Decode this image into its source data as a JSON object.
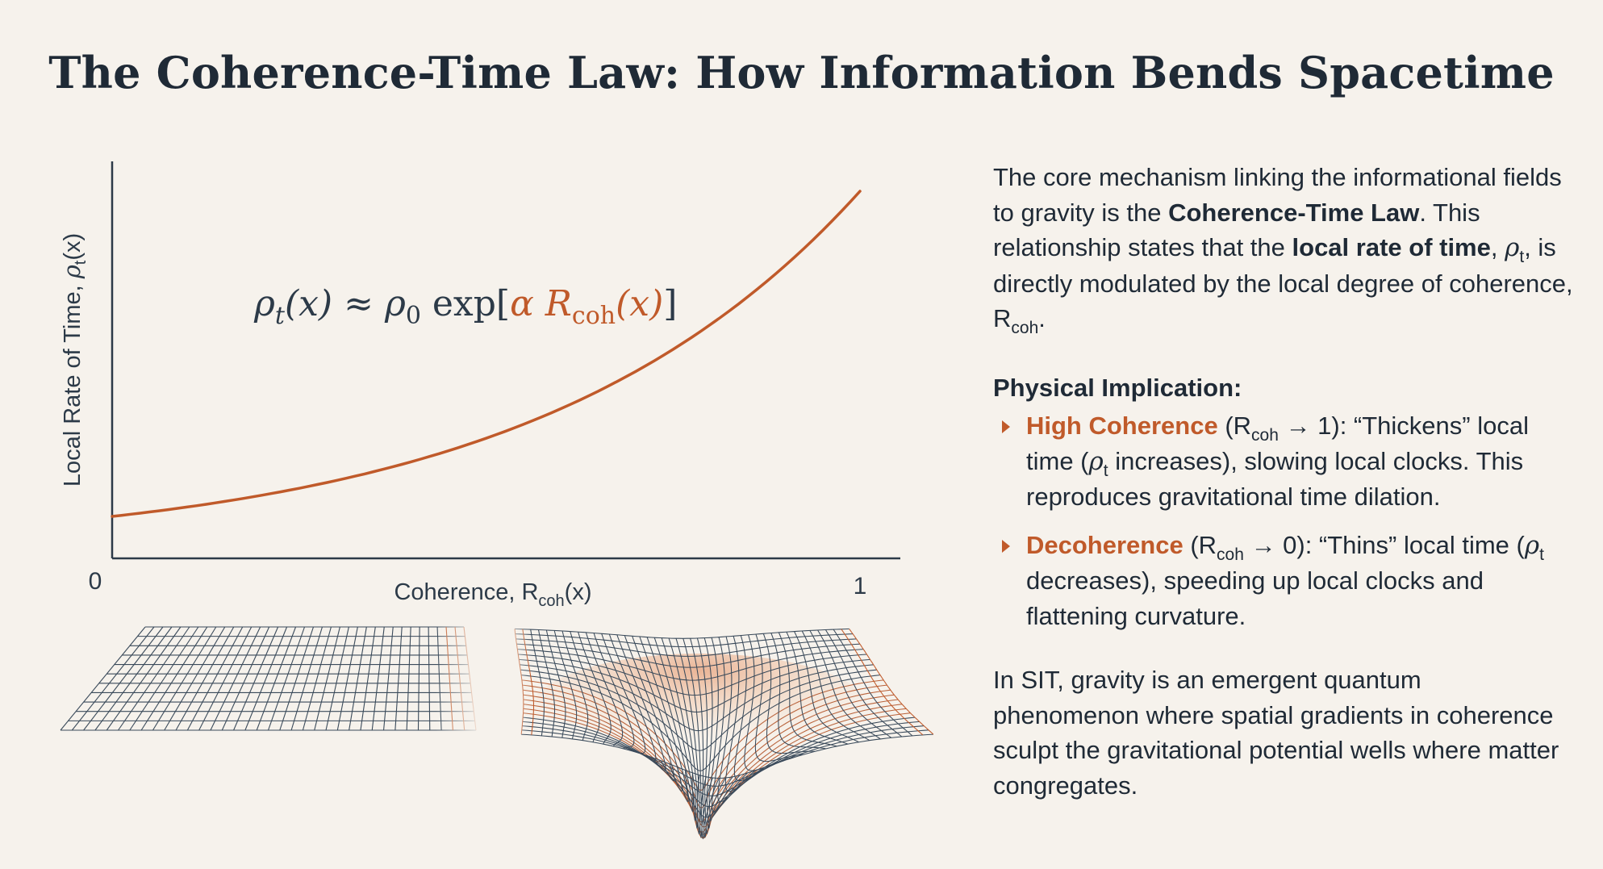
{
  "title": "The Coherence-Time Law: How Information Bends Spacetime",
  "colors": {
    "background": "#f6f2ec",
    "text": "#1f2a36",
    "accent": "#c05a2a",
    "grid": "#3a4a5a",
    "axis": "#2c3a48"
  },
  "chart_data": {
    "type": "line",
    "title": "",
    "xlabel": "Coherence, R",
    "xlabel_sub": "coh",
    "xlabel_tail": "(x)",
    "ylabel": "Local Rate of Time, ",
    "ylabel_symbol": "ρ",
    "ylabel_sub": "t",
    "ylabel_tail": "(x)",
    "xlim": [
      0,
      1
    ],
    "x_tick_labels": [
      "0",
      "1"
    ],
    "equation": {
      "lhs_symbol": "ρ",
      "lhs_sub": "t",
      "lhs_arg": "(x) ≈ ",
      "rhs_symbol": "ρ",
      "rhs_sub": "0",
      "func": " exp[",
      "alpha": "α ",
      "R": "R",
      "R_sub": "coh",
      "R_arg": "(x)",
      "close": "]"
    },
    "series": [
      {
        "name": "ρt(x)",
        "x": [
          0,
          0.1,
          0.2,
          0.3,
          0.4,
          0.5,
          0.6,
          0.7,
          0.8,
          0.9,
          1.0
        ],
        "values": [
          0.1,
          0.117,
          0.138,
          0.167,
          0.206,
          0.258,
          0.33,
          0.43,
          0.57,
          0.76,
          1.0
        ]
      }
    ]
  },
  "illustration": {
    "left_panel": "flat-spacetime-grid",
    "right_panel": "curved-spacetime-well"
  },
  "description": {
    "p1": {
      "t1": "The core mechanism linking the informational fields to gravity is the ",
      "b1": "Coherence-Time Law",
      "t2": ". This relationship states that the ",
      "b2": "local rate of time",
      "t3": ", ",
      "sym": "ρ",
      "sym_sub": "t",
      "t4": ", is directly modulated by the local degree of coherence, R",
      "t4_sub": "coh",
      "t5": "."
    },
    "implication_heading": "Physical Implication:",
    "bullets": [
      {
        "label": "High Coherence",
        "pre": " (R",
        "sub": "coh",
        "post": " → 1): “Thickens” local time (",
        "sym": "ρ",
        "sym_sub": "t",
        "rest": " increases), slowing local clocks. This reproduces gravitational time dilation."
      },
      {
        "label": "Decoherence",
        "pre": " (R",
        "sub": "coh",
        "post": " → 0): “Thins” local time (",
        "sym": "ρ",
        "sym_sub": "t",
        "rest": " decreases), speeding up local clocks and flattening curvature."
      }
    ],
    "summary": "In SIT, gravity is an emergent quantum phenomenon where spatial gradients in coherence sculpt the gravitational potential wells where matter congregates."
  }
}
